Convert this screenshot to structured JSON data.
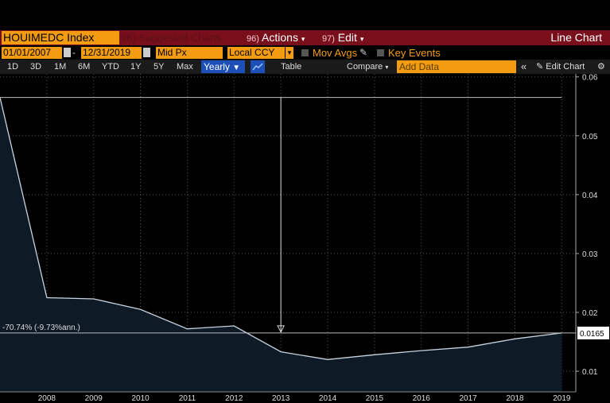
{
  "toolbar": {
    "ticker": "HOUIMEDC Index",
    "suggested": "96) Suggested Charts",
    "actions_num": "96)",
    "actions": "Actions",
    "edit_num": "97)",
    "edit": "Edit",
    "chart_type": "Line Chart"
  },
  "settings": {
    "start_date": "01/01/2007",
    "end_date": "12/31/2019",
    "field": "Mid Px",
    "currency": "Local CCY",
    "mov_avgs": "Mov Avgs",
    "key_events": "Key Events"
  },
  "periods": [
    "1D",
    "3D",
    "1M",
    "6M",
    "YTD",
    "1Y",
    "5Y",
    "Max"
  ],
  "frequency": "Yearly",
  "table_label": "Table",
  "compare_label": "Compare",
  "add_data_placeholder": "Add Data",
  "edit_chart_label": "Edit Chart",
  "colors": {
    "background": "#000000",
    "accent_orange": "#f39c12",
    "toolbar_red": "#7a0f1c",
    "series_line": "#c8d3dd",
    "area_fill": "#0e1a26",
    "active_blue": "#1c4fb8"
  },
  "chart_data": {
    "type": "area",
    "x": [
      2007,
      2008,
      2009,
      2010,
      2011,
      2012,
      2013,
      2014,
      2015,
      2016,
      2017,
      2018,
      2019
    ],
    "series": [
      {
        "values": [
          0.0565,
          0.0225,
          0.0223,
          0.0205,
          0.0172,
          0.0177,
          0.0133,
          0.012,
          0.0128,
          0.0135,
          0.0141,
          0.0155,
          0.0165
        ]
      }
    ],
    "x_tick_labels": [
      "2008",
      "2009",
      "2010",
      "2011",
      "2012",
      "2013",
      "2014",
      "2015",
      "2016",
      "2017",
      "2018",
      "2019"
    ],
    "y_tick_labels": [
      "0.01",
      "0.02",
      "0.03",
      "0.04",
      "0.05",
      "0.06"
    ],
    "y_ticks": [
      0.01,
      0.02,
      0.03,
      0.04,
      0.05,
      0.06
    ],
    "ylim": [
      0.0065,
      0.0605
    ],
    "xlim": [
      2007,
      2019.3
    ],
    "last_value_label": "0.0165",
    "last_value": 0.0165,
    "start_value": 0.0565,
    "change_annotation": "-70.74% (-9.73%ann.)",
    "arrow_x": 2013,
    "grid": true,
    "grid_style": "dotted",
    "y_axis_side": "right"
  }
}
